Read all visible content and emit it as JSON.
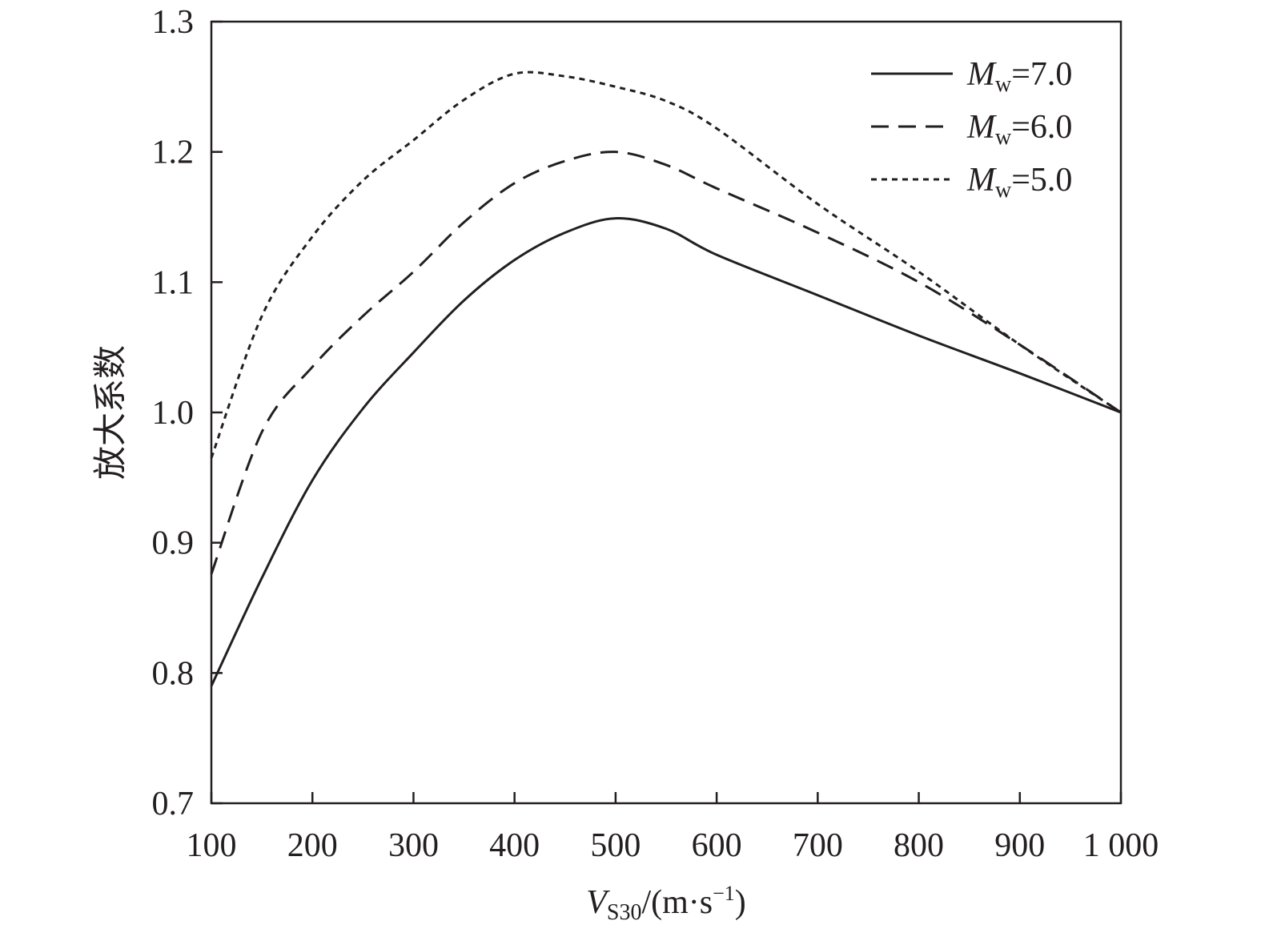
{
  "chart_data": {
    "type": "line",
    "title": "",
    "xlabel": "V_S30/(m·s⁻¹)",
    "xlabel_parts": {
      "main": "V",
      "sub": "S30",
      "rest": "/(m·s",
      "sup": "−1",
      "end": ")"
    },
    "ylabel": "放大系数",
    "xlim": [
      100,
      1000
    ],
    "ylim": [
      0.7,
      1.3
    ],
    "xticks": [
      100,
      200,
      300,
      400,
      500,
      600,
      700,
      800,
      900,
      1000
    ],
    "xtick_labels": [
      "100",
      "200",
      "300",
      "400",
      "500",
      "600",
      "700",
      "800",
      "900",
      "1 000"
    ],
    "yticks": [
      0.7,
      0.8,
      0.9,
      1.0,
      1.1,
      1.2,
      1.3
    ],
    "ytick_labels": [
      "0.7",
      "0.8",
      "0.9",
      "1.0",
      "1.1",
      "1.2",
      "1.3"
    ],
    "grid": false,
    "legend_position": "top-right",
    "x": [
      100,
      150,
      200,
      250,
      300,
      350,
      400,
      450,
      500,
      550,
      600,
      700,
      800,
      900,
      1000
    ],
    "series": [
      {
        "name": "Mw=7.0",
        "label_main": "M",
        "label_sub": "w",
        "label_rest": "=7.0",
        "style": "solid",
        "values": [
          0.79,
          0.873,
          0.948,
          1.003,
          1.046,
          1.086,
          1.117,
          1.138,
          1.149,
          1.141,
          1.121,
          1.09,
          1.059,
          1.03,
          1.0
        ]
      },
      {
        "name": "Mw=6.0",
        "label_main": "M",
        "label_sub": "w",
        "label_rest": "=6.0",
        "style": "dashed",
        "values": [
          0.876,
          0.985,
          1.035,
          1.074,
          1.108,
          1.146,
          1.176,
          1.193,
          1.2,
          1.19,
          1.172,
          1.138,
          1.1,
          1.052,
          1.0
        ]
      },
      {
        "name": "Mw=5.0",
        "label_main": "M",
        "label_sub": "w",
        "label_rest": "=5.0",
        "style": "dotted",
        "values": [
          0.965,
          1.074,
          1.135,
          1.178,
          1.209,
          1.24,
          1.26,
          1.258,
          1.25,
          1.239,
          1.218,
          1.16,
          1.108,
          1.052,
          1.0
        ]
      }
    ]
  }
}
